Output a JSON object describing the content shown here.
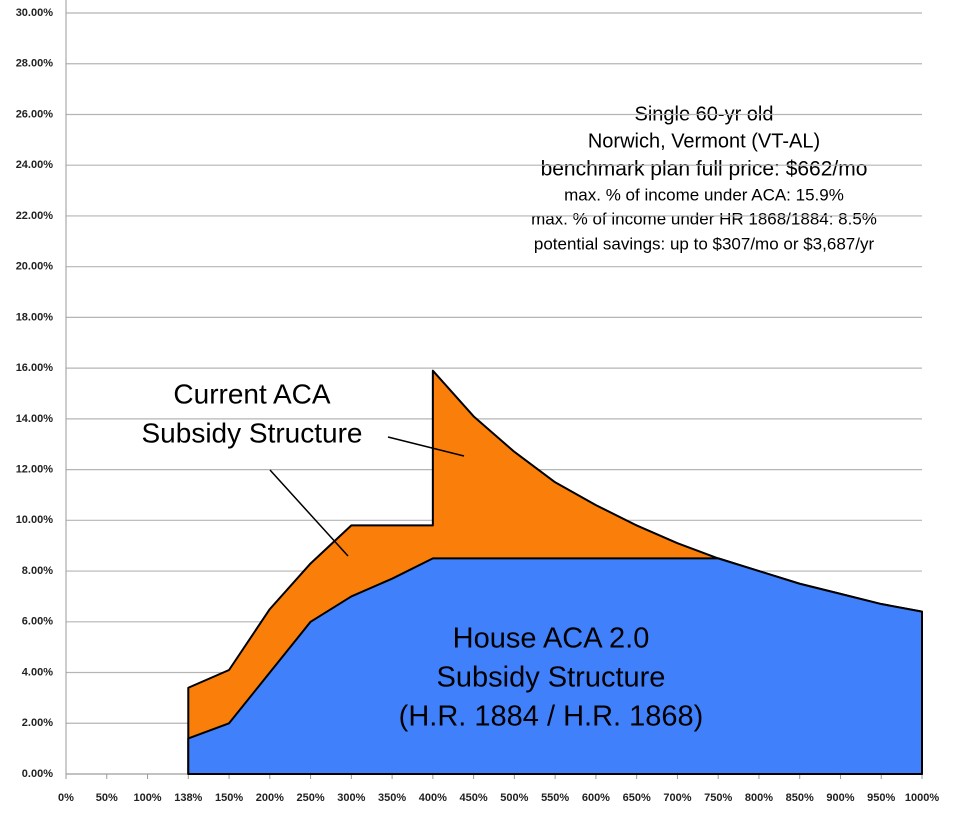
{
  "chart_data": {
    "type": "area",
    "categories": [
      "0%",
      "50%",
      "100%",
      "138%",
      "150%",
      "200%",
      "250%",
      "300%",
      "350%",
      "400%",
      "450%",
      "500%",
      "550%",
      "600%",
      "650%",
      "700%",
      "750%",
      "800%",
      "850%",
      "900%",
      "950%",
      "1000%"
    ],
    "series": [
      {
        "name": "Current ACA Subsidy Structure",
        "color": "#f97f0a",
        "values": [
          null,
          null,
          null,
          3.4,
          4.1,
          6.5,
          8.3,
          9.8,
          9.8,
          15.9,
          14.1,
          12.7,
          11.5,
          10.6,
          9.8,
          9.1,
          8.5,
          8.0,
          7.5,
          7.1,
          6.7,
          6.4
        ]
      },
      {
        "name": "House ACA 2.0 Subsidy Structure",
        "color": "#4080fb",
        "values": [
          null,
          null,
          null,
          1.4,
          2.0,
          4.0,
          6.0,
          7.0,
          7.7,
          8.5,
          8.5,
          8.5,
          8.5,
          8.5,
          8.5,
          8.5,
          8.5,
          8.0,
          7.5,
          7.1,
          6.7,
          6.4
        ]
      }
    ],
    "ylim": [
      0,
      30
    ],
    "yticks": [
      {
        "value": 0,
        "label": "0.00%"
      },
      {
        "value": 2,
        "label": "2.00%"
      },
      {
        "value": 4,
        "label": "4.00%"
      },
      {
        "value": 6,
        "label": "6.00%"
      },
      {
        "value": 8,
        "label": "8.00%"
      },
      {
        "value": 10,
        "label": "10.00%"
      },
      {
        "value": 12,
        "label": "12.00%"
      },
      {
        "value": 14,
        "label": "14.00%"
      },
      {
        "value": 16,
        "label": "16.00%"
      },
      {
        "value": 18,
        "label": "18.00%"
      },
      {
        "value": 20,
        "label": "20.00%"
      },
      {
        "value": 22,
        "label": "22.00%"
      },
      {
        "value": 24,
        "label": "24.00%"
      },
      {
        "value": 26,
        "label": "26.00%"
      },
      {
        "value": 28,
        "label": "28.00%"
      },
      {
        "value": 30,
        "label": "30.00%"
      }
    ],
    "grid": true,
    "annotations": {
      "info": [
        "Single 60-yr old",
        "Norwich, Vermont (VT-AL)",
        "benchmark plan full price: $662/mo",
        "max. % of income under ACA: 15.9%",
        "max. % of income under HR 1868/1884: 8.5%",
        "potential savings: up to $307/mo or $3,687/yr"
      ],
      "current": [
        "Current ACA",
        "Subsidy Structure"
      ],
      "house": [
        "House ACA 2.0",
        "Subsidy Structure",
        "(H.R. 1884 / H.R. 1868)"
      ]
    }
  }
}
